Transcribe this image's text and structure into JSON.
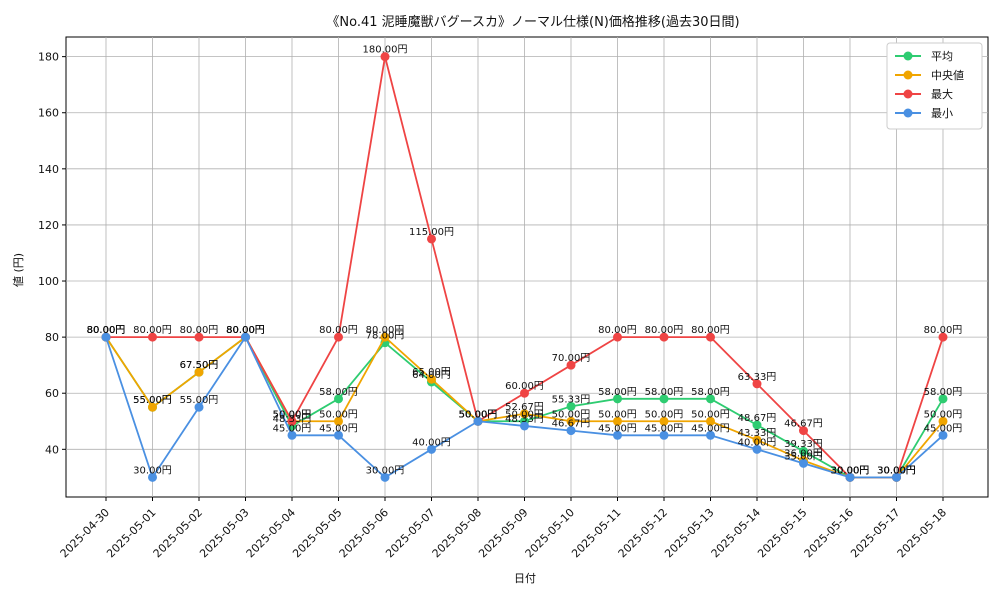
{
  "chart_data": {
    "type": "line",
    "title": "《No.41 泥睡魔獣バグースカ》ノーマル仕様(N)価格推移(過去30日間)",
    "xlabel": "日付",
    "ylabel": "値 (円)",
    "ylim": [
      23,
      187
    ],
    "yticks": [
      40,
      60,
      80,
      100,
      120,
      140,
      160,
      180
    ],
    "grid": true,
    "legend_position": "top-right",
    "label_suffix": "円",
    "categories": [
      "2025-04-30",
      "2025-05-01",
      "2025-05-02",
      "2025-05-03",
      "2025-05-04",
      "2025-05-05",
      "2025-05-06",
      "2025-05-07",
      "2025-05-08",
      "2025-05-09",
      "2025-05-10",
      "2025-05-11",
      "2025-05-12",
      "2025-05-13",
      "2025-05-14",
      "2025-05-15",
      "2025-05-16",
      "2025-05-17",
      "2025-05-18"
    ],
    "series": [
      {
        "name": "平均",
        "color": "#2ecc71",
        "values": [
          80,
          55,
          67.5,
          80,
          48.33,
          58,
          78,
          64,
          50,
          50,
          55.33,
          58,
          58,
          58,
          48.67,
          39.33,
          30,
          30,
          58
        ]
      },
      {
        "name": "中央値",
        "color": "#f0a500",
        "values": [
          80,
          55,
          67.5,
          80,
          50,
          50,
          80,
          65,
          50,
          52.67,
          50,
          50,
          50,
          50,
          43.33,
          36,
          30,
          30,
          50
        ]
      },
      {
        "name": "最大",
        "color": "#ef4444",
        "values": [
          80,
          80,
          80,
          80,
          50,
          80,
          180,
          115,
          50,
          60,
          70,
          80,
          80,
          80,
          63.33,
          46.67,
          30,
          30,
          80
        ]
      },
      {
        "name": "最小",
        "color": "#4a90e2",
        "values": [
          80,
          30,
          55,
          80,
          45,
          45,
          30,
          40,
          50,
          48.33,
          46.67,
          45,
          45,
          45,
          40,
          35,
          30,
          30,
          45
        ]
      }
    ]
  }
}
